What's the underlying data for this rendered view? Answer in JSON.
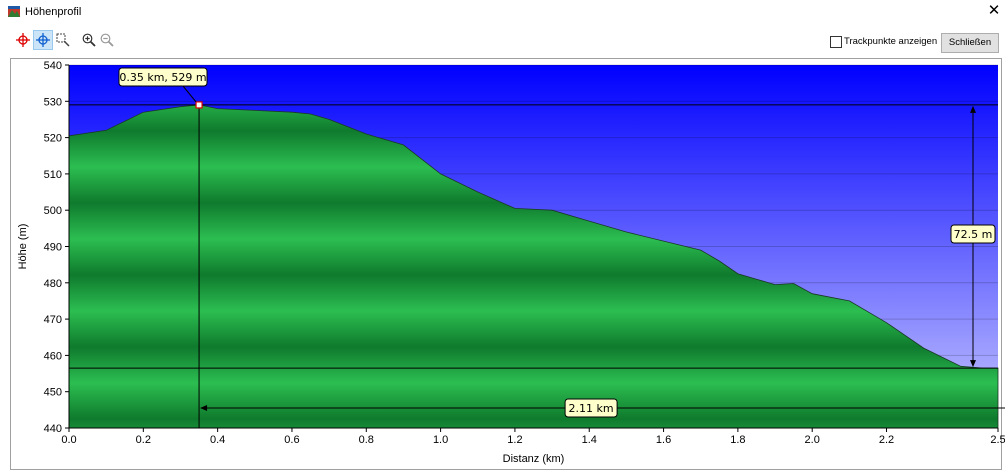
{
  "window": {
    "title": "Höhenprofil"
  },
  "toolbar": {
    "tools": [
      "crosshair-red-icon",
      "crosshair-blue-icon",
      "zoom-box-icon",
      "zoom-in-icon",
      "zoom-out-icon"
    ],
    "trackpoints_label": "Trackpunkte anzeigen",
    "trackpoints_checked": false,
    "close_label": "Schließen"
  },
  "colors": {
    "sky_top": "#0000ff",
    "sky_bottom": "#c8c8ff",
    "terrain_dark": "#0f7a2d",
    "terrain_light": "#2cbe51",
    "annotation_bg": "#ffffcc"
  },
  "chart_data": {
    "type": "area",
    "xlabel": "Distanz   (km)",
    "ylabel": "Höhe (m)",
    "xlim": [
      0,
      2.5
    ],
    "ylim": [
      440,
      540
    ],
    "xticks": [
      "0.0",
      "0.2",
      "0.4",
      "0.6",
      "0.8",
      "1.0",
      "1.2",
      "1.4",
      "1.6",
      "1.8",
      "2.0",
      "2.2",
      "2.5"
    ],
    "yticks": [
      "540",
      "530",
      "520",
      "510",
      "500",
      "490",
      "480",
      "470",
      "460",
      "450",
      "440"
    ],
    "x": [
      0,
      0.1,
      0.2,
      0.3,
      0.35,
      0.4,
      0.5,
      0.6,
      0.65,
      0.7,
      0.8,
      0.9,
      1.0,
      1.1,
      1.2,
      1.3,
      1.4,
      1.5,
      1.6,
      1.7,
      1.75,
      1.8,
      1.85,
      1.9,
      1.95,
      2.0,
      2.05,
      2.1,
      2.2,
      2.3,
      2.4,
      2.46,
      2.5
    ],
    "y": [
      520.5,
      522,
      527,
      528.5,
      529,
      528,
      527.5,
      527,
      526.5,
      525,
      521,
      518,
      510,
      505,
      500.5,
      500,
      497,
      494,
      491.5,
      489,
      486,
      482.5,
      481,
      479.5,
      479.8,
      477,
      476,
      475,
      469,
      462,
      457,
      456.5,
      456.5
    ],
    "marker": {
      "x": 0.35,
      "y": 529,
      "label": "0.35 km, 529 m"
    },
    "height_annotation": {
      "label": "72.5 m",
      "top": 529,
      "bottom": 456.5
    },
    "distance_annotation": {
      "label": "2.11 km",
      "start": 0.35,
      "end": 2.46
    }
  }
}
